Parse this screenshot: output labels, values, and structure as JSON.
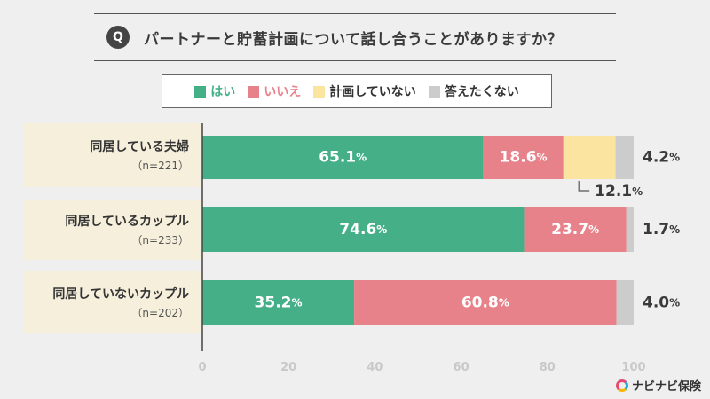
{
  "title": {
    "badge": "Q",
    "text": "パートナーと貯蓄計画について話し合うことがありますか？"
  },
  "legend": [
    {
      "label": "はい",
      "color": "#45b088"
    },
    {
      "label": "いいえ",
      "color": "#e8828a"
    },
    {
      "label": "計画していない",
      "color": "#fbe3a0"
    },
    {
      "label": "答えたくない",
      "color": "#cccccc"
    }
  ],
  "rows": [
    {
      "label": "同居している夫婦",
      "n": "（n=221）"
    },
    {
      "label": "同居しているカップル",
      "n": "（n=233）"
    },
    {
      "label": "同居していないカップル",
      "n": "（n=202）"
    }
  ],
  "chart_data": {
    "type": "bar",
    "orientation": "horizontal",
    "stacked": true,
    "categories": [
      "同居している夫婦",
      "同居しているカップル",
      "同居していないカップル"
    ],
    "series": [
      {
        "name": "はい",
        "values": [
          65.1,
          74.6,
          35.2
        ],
        "labels": [
          "65.1",
          "74.6",
          "35.2"
        ]
      },
      {
        "name": "いいえ",
        "values": [
          18.6,
          23.7,
          60.8
        ],
        "labels": [
          "18.6",
          "23.7",
          "60.8"
        ]
      },
      {
        "name": "計画していない",
        "values": [
          12.1,
          0,
          0
        ],
        "labels": [
          "12.1",
          "",
          ""
        ]
      },
      {
        "name": "答えたくない",
        "values": [
          4.2,
          1.7,
          4.0
        ],
        "labels": [
          "4.2",
          "1.7",
          "4.0"
        ]
      }
    ],
    "unit": "%",
    "xlim": [
      0,
      100
    ],
    "xticks": [
      "0",
      "20",
      "40",
      "60",
      "80",
      "100"
    ]
  },
  "brand": {
    "name": "ナビナビ保険"
  }
}
